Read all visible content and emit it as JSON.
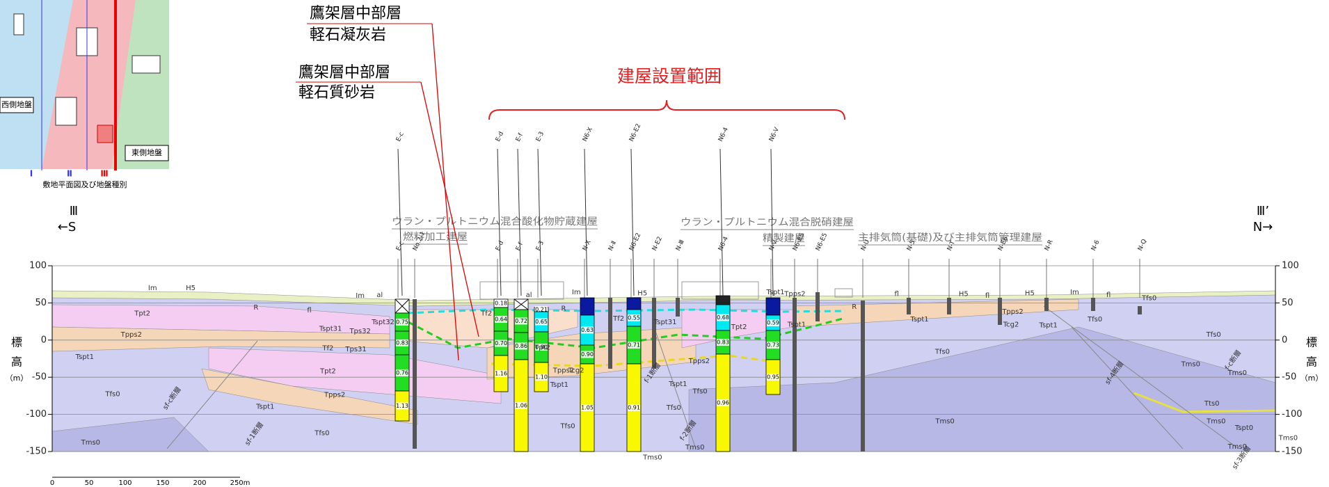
{
  "map_inset": {
    "west_label": "西側地盤",
    "east_label": "東側地盤",
    "caption": "敷地平面図及び地盤種別",
    "section_marks": [
      "Ⅰ",
      "Ⅱ",
      "Ⅲ"
    ]
  },
  "callouts": [
    {
      "lines": [
        "鷹架層中部層",
        "軽石凝灰岩"
      ]
    },
    {
      "lines": [
        "鷹架層中部層",
        "軽石質砂岩"
      ]
    }
  ],
  "range_label": "建屋設置範囲",
  "section_ends": {
    "left": {
      "mark": "Ⅲ",
      "direction": "←S"
    },
    "right": {
      "mark": "Ⅲ’",
      "direction": "N→"
    }
  },
  "axis": {
    "label_chars": [
      "標",
      "高",
      "（m）"
    ],
    "ylim": [
      -150,
      100
    ],
    "yticks": [
      100,
      50,
      0,
      -50,
      -100,
      -150
    ]
  },
  "buildings": [
    "ウラン・プルトニウム混合酸化物貯蔵建屋",
    "燃料加工建屋",
    "ウラン・プルトニウム混合脱硝建屋",
    "精製建屋",
    "主排気筒(基礎)及び主排気筒管理建屋"
  ],
  "boreholes": [
    {
      "name": "E-c",
      "values": [
        "0.75",
        "0.83",
        "0.76",
        "1.13"
      ]
    },
    {
      "name": "E-d",
      "values": [
        "0.18",
        "0.64",
        "0.70",
        "1.16"
      ]
    },
    {
      "name": "E-f",
      "values": [
        "0.72",
        "0.86",
        "1.06"
      ]
    },
    {
      "name": "E-3",
      "values": [
        "0.21",
        "0.65",
        "0.80",
        "1.10"
      ]
    },
    {
      "name": "N6-X",
      "values": [
        "0.63",
        "0.90",
        "1.05"
      ]
    },
    {
      "name": "N6-E2",
      "values": [
        "0.55",
        "0.71",
        "0.91"
      ]
    },
    {
      "name": "N6-4",
      "values": [
        "0.68",
        "0.83",
        "0.96"
      ]
    },
    {
      "name": "N6-V",
      "values": [
        "0.59",
        "0.73",
        "0.95"
      ]
    }
  ],
  "borehole_labels": [
    "E-c",
    "No.2-1",
    "E-d",
    "E-f",
    "E-3",
    "N-X",
    "N-Ⅱ",
    "N6-E2",
    "N-E2",
    "N-Ⅲ",
    "N6-4",
    "N-V",
    "N6-E5",
    "N6-E5",
    "N-U",
    "N-5",
    "N-T",
    "N-E6",
    "N-R",
    "N-6",
    "N-Q"
  ],
  "formation_labels": [
    "Im",
    "H5",
    "Tpt2",
    "R",
    "fl",
    "Tpps2",
    "Tspt1",
    "Tspt31",
    "Tps32",
    "Tspt32",
    "Tps31",
    "Tf2",
    "Tpt2",
    "Tpps2",
    "Tspt1",
    "Tfs0",
    "Tfs0",
    "Tms0",
    "Im",
    "al",
    "Tf2",
    "al",
    "R",
    "Im",
    "Tf2",
    "H5",
    "Tspt31",
    "Tpt2",
    "Tpps2",
    "Tspt1",
    "Tcg2",
    "Tfs0",
    "Tpps2",
    "Tspt1",
    "Tfs0",
    "Tfs0",
    "Tms0",
    "Tms0",
    "Tpt2",
    "Tspt1",
    "Tpps2",
    "Tspt1",
    "fl",
    "R",
    "Tspt1",
    "H5",
    "fl",
    "Tpps2",
    "Tcg2",
    "H5",
    "Tspt1",
    "Im",
    "fl",
    "Tfs0",
    "Tfs0",
    "Tfs0",
    "Tfs0",
    "Tms0",
    "Tms0",
    "Tms0",
    "Tts0",
    "Tms0",
    "Tspt0",
    "Tms0",
    "Tms0"
  ],
  "fault_labels": [
    "sf-c断層",
    "sf-1断層",
    "f-1断層",
    "f-2断層",
    "sf-4断層",
    "f-c断層",
    "sf-3断層"
  ],
  "scale_bar": [
    "0",
    "50",
    "100",
    "150",
    "200",
    "250m"
  ]
}
